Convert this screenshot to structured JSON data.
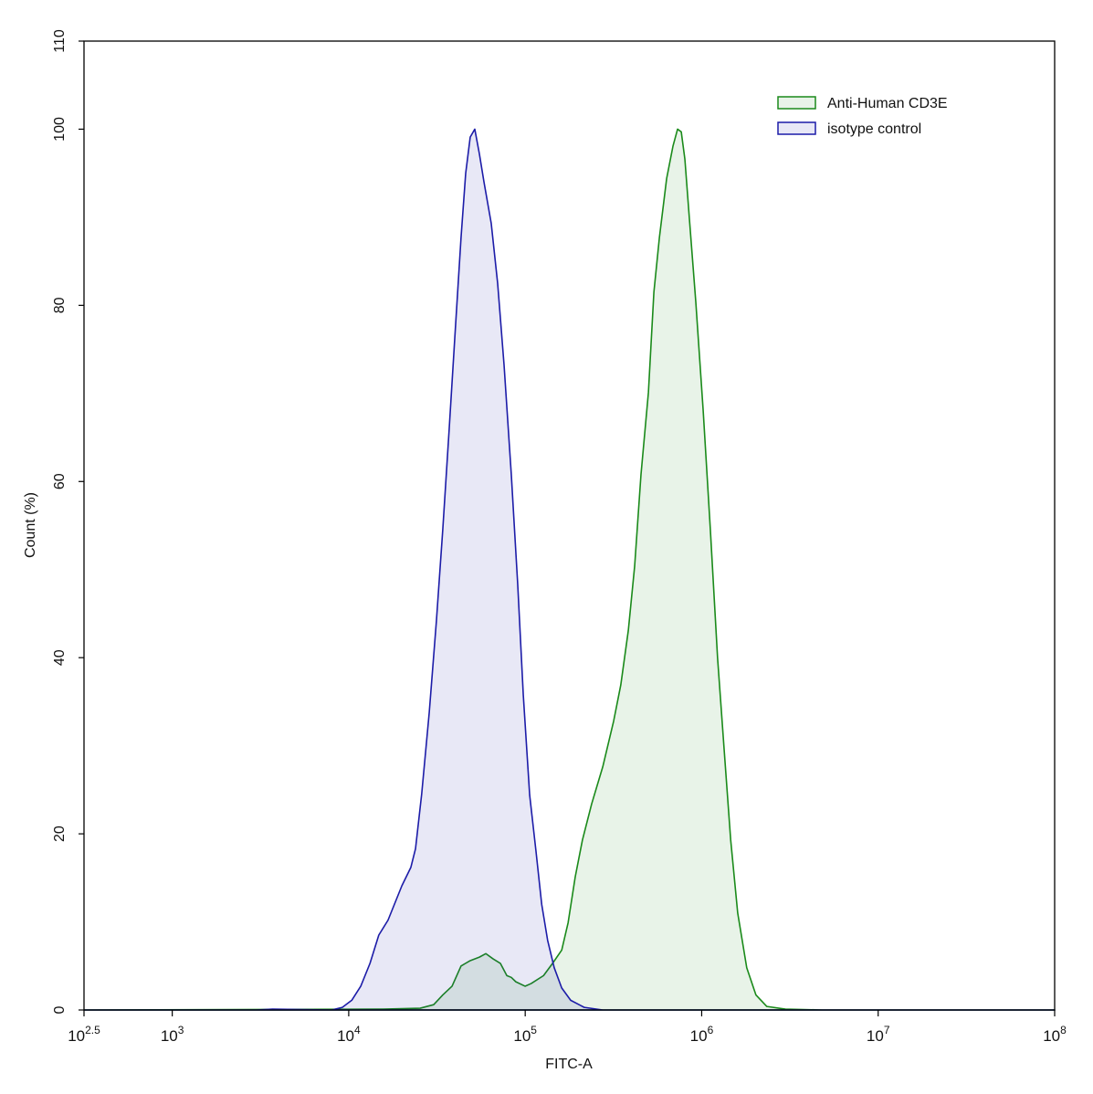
{
  "chart_data": {
    "type": "area",
    "x_label": "FITC-A",
    "y_label": "Count  (%)",
    "xscale": "log",
    "xlim": [
      316.2278,
      100000000
    ],
    "ylim": [
      0,
      110
    ],
    "xticks": [
      {
        "value": 316.2278,
        "label": "10^2.5"
      },
      {
        "value": 1000,
        "label": "10^3"
      },
      {
        "value": 10000,
        "label": "10^4"
      },
      {
        "value": 100000,
        "label": "10^5"
      },
      {
        "value": 1000000,
        "label": "10^6"
      },
      {
        "value": 10000000,
        "label": "10^7"
      },
      {
        "value": 100000000,
        "label": "10^8"
      }
    ],
    "yticks": [
      0,
      20,
      40,
      60,
      80,
      100,
      110
    ],
    "legend": "top-right",
    "series": [
      {
        "name": "Anti-Human CD3E",
        "color": "#1a8a1a",
        "x": [
          316.2278,
          15700,
          25400,
          30300,
          34100,
          38500,
          43300,
          48800,
          55000,
          59800,
          65800,
          72300,
          78700,
          83400,
          88500,
          99800,
          108000,
          127000,
          143000,
          161000,
          175000,
          192000,
          211000,
          238000,
          275000,
          317000,
          348000,
          384000,
          417000,
          453000,
          499000,
          536000,
          576000,
          633000,
          688000,
          730000,
          766000,
          803000,
          852000,
          926000,
          1020000,
          1120000,
          1230000,
          1340000,
          1460000,
          1600000,
          1800000,
          2030000,
          2340000,
          2980000,
          4800000,
          100000000
        ],
        "values": [
          0,
          0.1,
          0.2,
          0.6,
          1.7,
          2.7,
          5.0,
          5.6,
          6.0,
          6.4,
          5.8,
          5.3,
          3.9,
          3.7,
          3.2,
          2.7,
          3.0,
          3.9,
          5.3,
          6.8,
          9.9,
          15.1,
          19.3,
          23.4,
          27.6,
          32.8,
          36.9,
          43.1,
          50.4,
          60.8,
          70.1,
          81.5,
          87.7,
          94.4,
          98.1,
          100,
          99.7,
          96.6,
          89.8,
          80.4,
          68,
          54.5,
          40,
          29.6,
          19.3,
          11,
          4.8,
          1.7,
          0.4,
          0.1,
          0,
          0
        ]
      },
      {
        "name": "isotype control",
        "color": "#1c1ca8",
        "x": [
          316.2278,
          3000,
          3700,
          8000,
          9200,
          10400,
          11700,
          13200,
          14800,
          16700,
          20000,
          22500,
          23900,
          25900,
          28600,
          31400,
          34100,
          37100,
          39900,
          43300,
          46000,
          48800,
          51800,
          55000,
          58400,
          64200,
          69800,
          75900,
          83400,
          90700,
          97500,
          106000,
          115000,
          124000,
          134000,
          146000,
          161000,
          181000,
          216000,
          275000,
          100000000
        ],
        "values": [
          0,
          0,
          0.1,
          0,
          0.3,
          1.1,
          2.7,
          5.3,
          8.5,
          10.2,
          14.1,
          16.2,
          18.3,
          24.5,
          33.8,
          44.2,
          54.5,
          66,
          76.3,
          87.7,
          95,
          99.1,
          100,
          97.2,
          94,
          89.3,
          82.5,
          73.2,
          60.8,
          48.3,
          35.8,
          24.4,
          18.1,
          12,
          7.9,
          4.8,
          2.5,
          1.1,
          0.3,
          0,
          0
        ]
      }
    ]
  }
}
